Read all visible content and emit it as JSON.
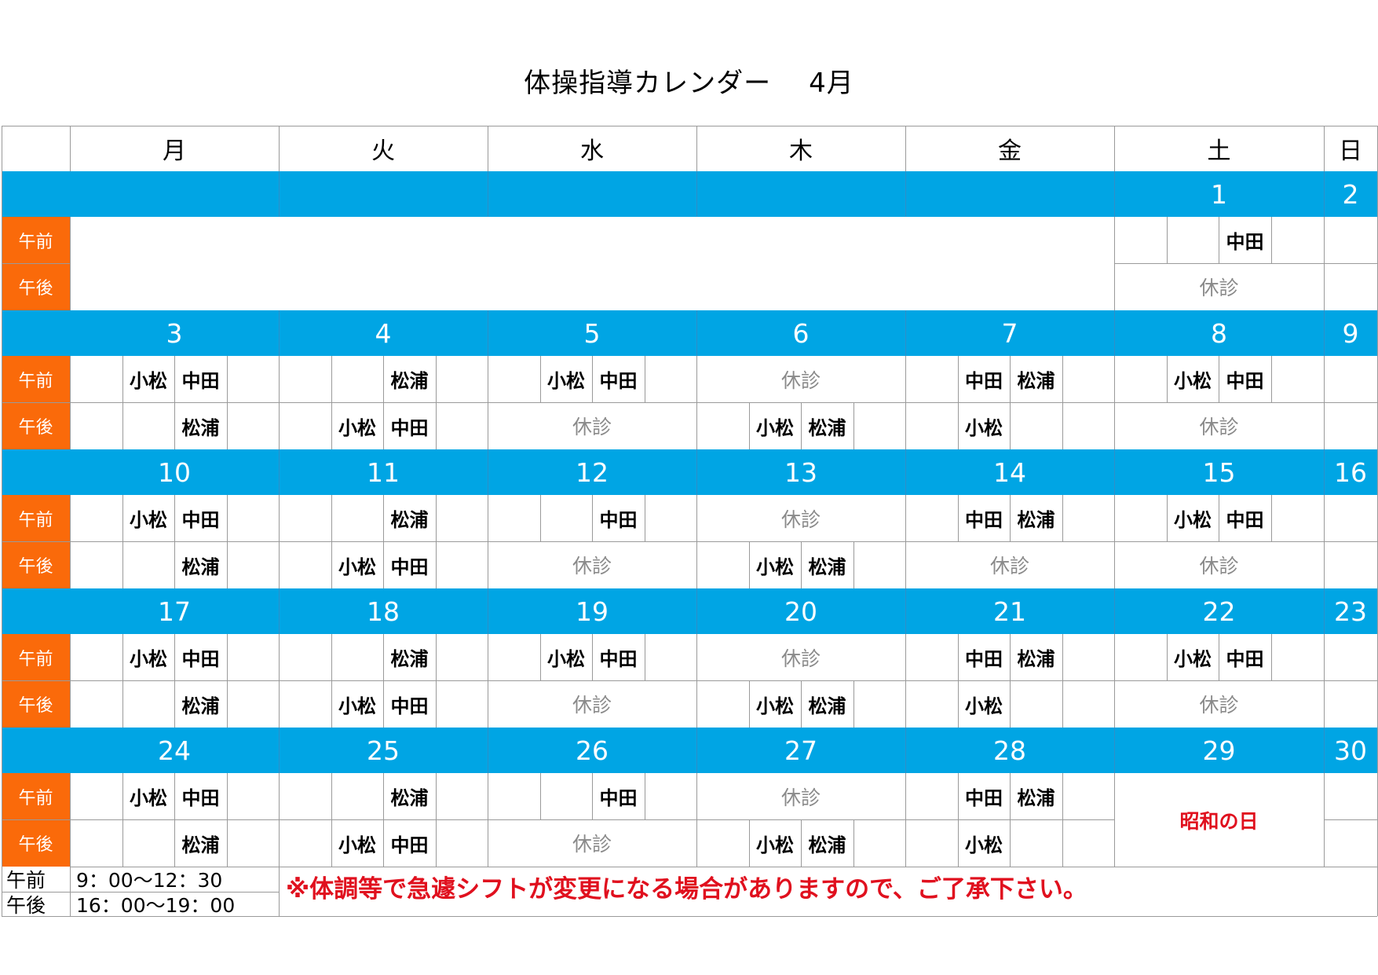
{
  "title": "体操指導カレンダー",
  "month": "4月",
  "weekdays": [
    "月",
    "火",
    "水",
    "木",
    "金",
    "土",
    "日"
  ],
  "am_label": "午前",
  "pm_label": "午後",
  "closed_text": "休診",
  "holiday_text": "昭和の日",
  "weeks": [
    {
      "dates": [
        "",
        "",
        "",
        "",
        "",
        "1",
        "2"
      ],
      "days": [
        null,
        null,
        null,
        null,
        null,
        {
          "am": [
            "",
            "",
            "中田",
            ""
          ],
          "pm": "closed"
        },
        {
          "am": "empty",
          "pm": "empty"
        }
      ]
    },
    {
      "dates": [
        "3",
        "4",
        "5",
        "6",
        "7",
        "8",
        "9"
      ],
      "days": [
        {
          "am": [
            "",
            "小松",
            "中田",
            ""
          ],
          "pm": [
            "",
            "",
            "松浦",
            ""
          ]
        },
        {
          "am": [
            "",
            "",
            "松浦",
            ""
          ],
          "pm": [
            "",
            "小松",
            "中田",
            ""
          ]
        },
        {
          "am": [
            "",
            "小松",
            "中田",
            ""
          ],
          "pm": "closed"
        },
        {
          "am": "closed",
          "pm": [
            "",
            "小松",
            "松浦",
            ""
          ]
        },
        {
          "am": [
            "",
            "中田",
            "松浦",
            ""
          ],
          "pm": [
            "",
            "小松",
            "",
            ""
          ]
        },
        {
          "am": [
            "",
            "小松",
            "中田",
            ""
          ],
          "pm": "closed"
        },
        {
          "am": "empty",
          "pm": "empty"
        }
      ]
    },
    {
      "dates": [
        "10",
        "11",
        "12",
        "13",
        "14",
        "15",
        "16"
      ],
      "days": [
        {
          "am": [
            "",
            "小松",
            "中田",
            ""
          ],
          "pm": [
            "",
            "",
            "松浦",
            ""
          ]
        },
        {
          "am": [
            "",
            "",
            "松浦",
            ""
          ],
          "pm": [
            "",
            "小松",
            "中田",
            ""
          ]
        },
        {
          "am": [
            "",
            "",
            "中田",
            ""
          ],
          "pm": "closed"
        },
        {
          "am": "closed",
          "pm": [
            "",
            "小松",
            "松浦",
            ""
          ]
        },
        {
          "am": [
            "",
            "中田",
            "松浦",
            ""
          ],
          "pm": "closed"
        },
        {
          "am": [
            "",
            "小松",
            "中田",
            ""
          ],
          "pm": "closed"
        },
        {
          "am": "empty",
          "pm": "empty"
        }
      ]
    },
    {
      "dates": [
        "17",
        "18",
        "19",
        "20",
        "21",
        "22",
        "23"
      ],
      "days": [
        {
          "am": [
            "",
            "小松",
            "中田",
            ""
          ],
          "pm": [
            "",
            "",
            "松浦",
            ""
          ]
        },
        {
          "am": [
            "",
            "",
            "松浦",
            ""
          ],
          "pm": [
            "",
            "小松",
            "中田",
            ""
          ]
        },
        {
          "am": [
            "",
            "小松",
            "中田",
            ""
          ],
          "pm": "closed"
        },
        {
          "am": "closed",
          "pm": [
            "",
            "小松",
            "松浦",
            ""
          ]
        },
        {
          "am": [
            "",
            "中田",
            "松浦",
            ""
          ],
          "pm": [
            "",
            "小松",
            "",
            ""
          ]
        },
        {
          "am": [
            "",
            "小松",
            "中田",
            ""
          ],
          "pm": "closed"
        },
        {
          "am": "empty",
          "pm": "empty"
        }
      ]
    },
    {
      "dates": [
        "24",
        "25",
        "26",
        "27",
        "28",
        "29",
        "30"
      ],
      "days": [
        {
          "am": [
            "",
            "小松",
            "中田",
            ""
          ],
          "pm": [
            "",
            "",
            "松浦",
            ""
          ]
        },
        {
          "am": [
            "",
            "",
            "松浦",
            ""
          ],
          "pm": [
            "",
            "小松",
            "中田",
            ""
          ]
        },
        {
          "am": [
            "",
            "",
            "中田",
            ""
          ],
          "pm": "closed"
        },
        {
          "am": "closed",
          "pm": [
            "",
            "小松",
            "松浦",
            ""
          ]
        },
        {
          "am": [
            "",
            "中田",
            "松浦",
            ""
          ],
          "pm": [
            "",
            "小松",
            "",
            ""
          ]
        },
        {
          "holiday": true
        },
        {
          "am": "empty",
          "pm": "empty"
        }
      ]
    }
  ],
  "footer": {
    "am_label": "午前",
    "am_time": "9：00～12：30",
    "pm_label": "午後",
    "pm_time": "16：00～19：00",
    "note": "※体調等で急遽シフトが変更になる場合がありますので、ご了承下さい。"
  },
  "colors": {
    "date_band": "#00a5e4",
    "ampm_label": "#fa6a0a",
    "holiday": "#e0101e",
    "note": "#e0101e",
    "closed": "#8a8a8a"
  }
}
